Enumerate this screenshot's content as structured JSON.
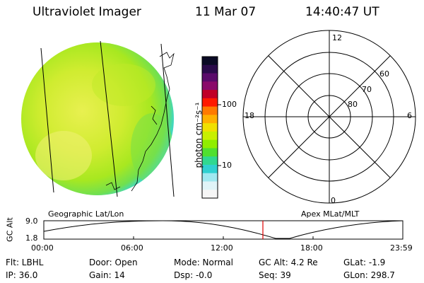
{
  "header": {
    "instrument": "Ultraviolet Imager",
    "date": "11 Mar 07",
    "time": "14:40:47 UT"
  },
  "colorbar": {
    "label": "photon cm⁻²s⁻¹",
    "ticks": [
      "100",
      "10"
    ],
    "colors": [
      "#0a0a24",
      "#2a0a4a",
      "#5a0a6a",
      "#8a0a6a",
      "#c00028",
      "#ff1a00",
      "#ff7a00",
      "#ffb000",
      "#f0e000",
      "#c8f000",
      "#90ee00",
      "#50e030",
      "#30d890",
      "#30d0d0",
      "#a0e8f0",
      "#e0f4f8",
      "#f6f6f6"
    ]
  },
  "polar": {
    "labels": [
      "12",
      "18",
      "6",
      "0",
      "60",
      "70",
      "80"
    ]
  },
  "timeline": {
    "left_label": "Geographic Lat/Lon",
    "right_label": "Apex MLat/MLT",
    "axis_title": "GC Alt",
    "y_ticks": [
      "9.0",
      "1.8"
    ],
    "x_ticks": [
      "00:00",
      "06:00",
      "12:00",
      "18:00",
      "23:59"
    ],
    "marker_color": "#e00000"
  },
  "info": {
    "row1": [
      "Flt: LBHL",
      "Door: Open",
      "Mode: Normal",
      "GC Alt: 4.2 Re",
      "GLat:  -1.9"
    ],
    "row2": [
      "IP: 36.0",
      "Gain: 14",
      "Dsp:    -0.0",
      "Seq: 39",
      "GLon: 298.7"
    ]
  }
}
